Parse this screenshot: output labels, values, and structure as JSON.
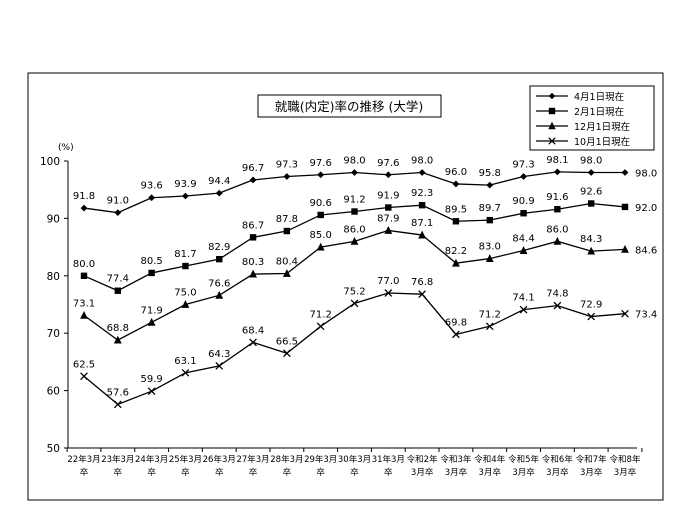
{
  "chart_data": {
    "type": "line",
    "title": "就職(内定)率の推移 (大学)",
    "ylabel": "(%)",
    "xlabel": "",
    "ylim": [
      50,
      100
    ],
    "yticks": [
      50,
      60,
      70,
      80,
      90,
      100
    ],
    "grid": false,
    "legend_position": "top-right",
    "categories": [
      [
        "22年3月",
        "卒"
      ],
      [
        "23年3月",
        "卒"
      ],
      [
        "24年3月",
        "卒"
      ],
      [
        "25年3月",
        "卒"
      ],
      [
        "26年3月",
        "卒"
      ],
      [
        "27年3月",
        "卒"
      ],
      [
        "28年3月",
        "卒"
      ],
      [
        "29年3月",
        "卒"
      ],
      [
        "30年3月",
        "卒"
      ],
      [
        "31年3月",
        "卒"
      ],
      [
        "令和2年",
        "3月卒"
      ],
      [
        "令和3年",
        "3月卒"
      ],
      [
        "令和4年",
        "3月卒"
      ],
      [
        "令和5年",
        "3月卒"
      ],
      [
        "令和6年",
        "3月卒"
      ],
      [
        "令和7年",
        "3月卒"
      ],
      [
        "令和8年",
        "3月卒"
      ]
    ],
    "series": [
      {
        "name": "4月1日現在",
        "marker": "diamond",
        "values": [
          91.8,
          91.0,
          93.6,
          93.9,
          94.4,
          96.7,
          97.3,
          97.6,
          98.0,
          97.6,
          98.0,
          96.0,
          95.8,
          97.3,
          98.1,
          98.0,
          98.0
        ]
      },
      {
        "name": "2月1日現在",
        "marker": "square",
        "values": [
          80.0,
          77.4,
          80.5,
          81.7,
          82.9,
          86.7,
          87.8,
          90.6,
          91.2,
          91.9,
          92.3,
          89.5,
          89.7,
          90.9,
          91.6,
          92.6,
          92.0
        ]
      },
      {
        "name": "12月1日現在",
        "marker": "triangle",
        "values": [
          73.1,
          68.8,
          71.9,
          75.0,
          76.6,
          80.3,
          80.4,
          85.0,
          86.0,
          87.9,
          87.1,
          82.2,
          83.0,
          84.4,
          86.0,
          84.3,
          84.6
        ]
      },
      {
        "name": "10月1日現在",
        "marker": "x",
        "values": [
          62.5,
          57.6,
          59.9,
          63.1,
          64.3,
          68.4,
          66.5,
          71.2,
          75.2,
          77.0,
          76.8,
          69.8,
          71.2,
          74.1,
          74.8,
          72.9,
          73.4
        ]
      }
    ]
  }
}
